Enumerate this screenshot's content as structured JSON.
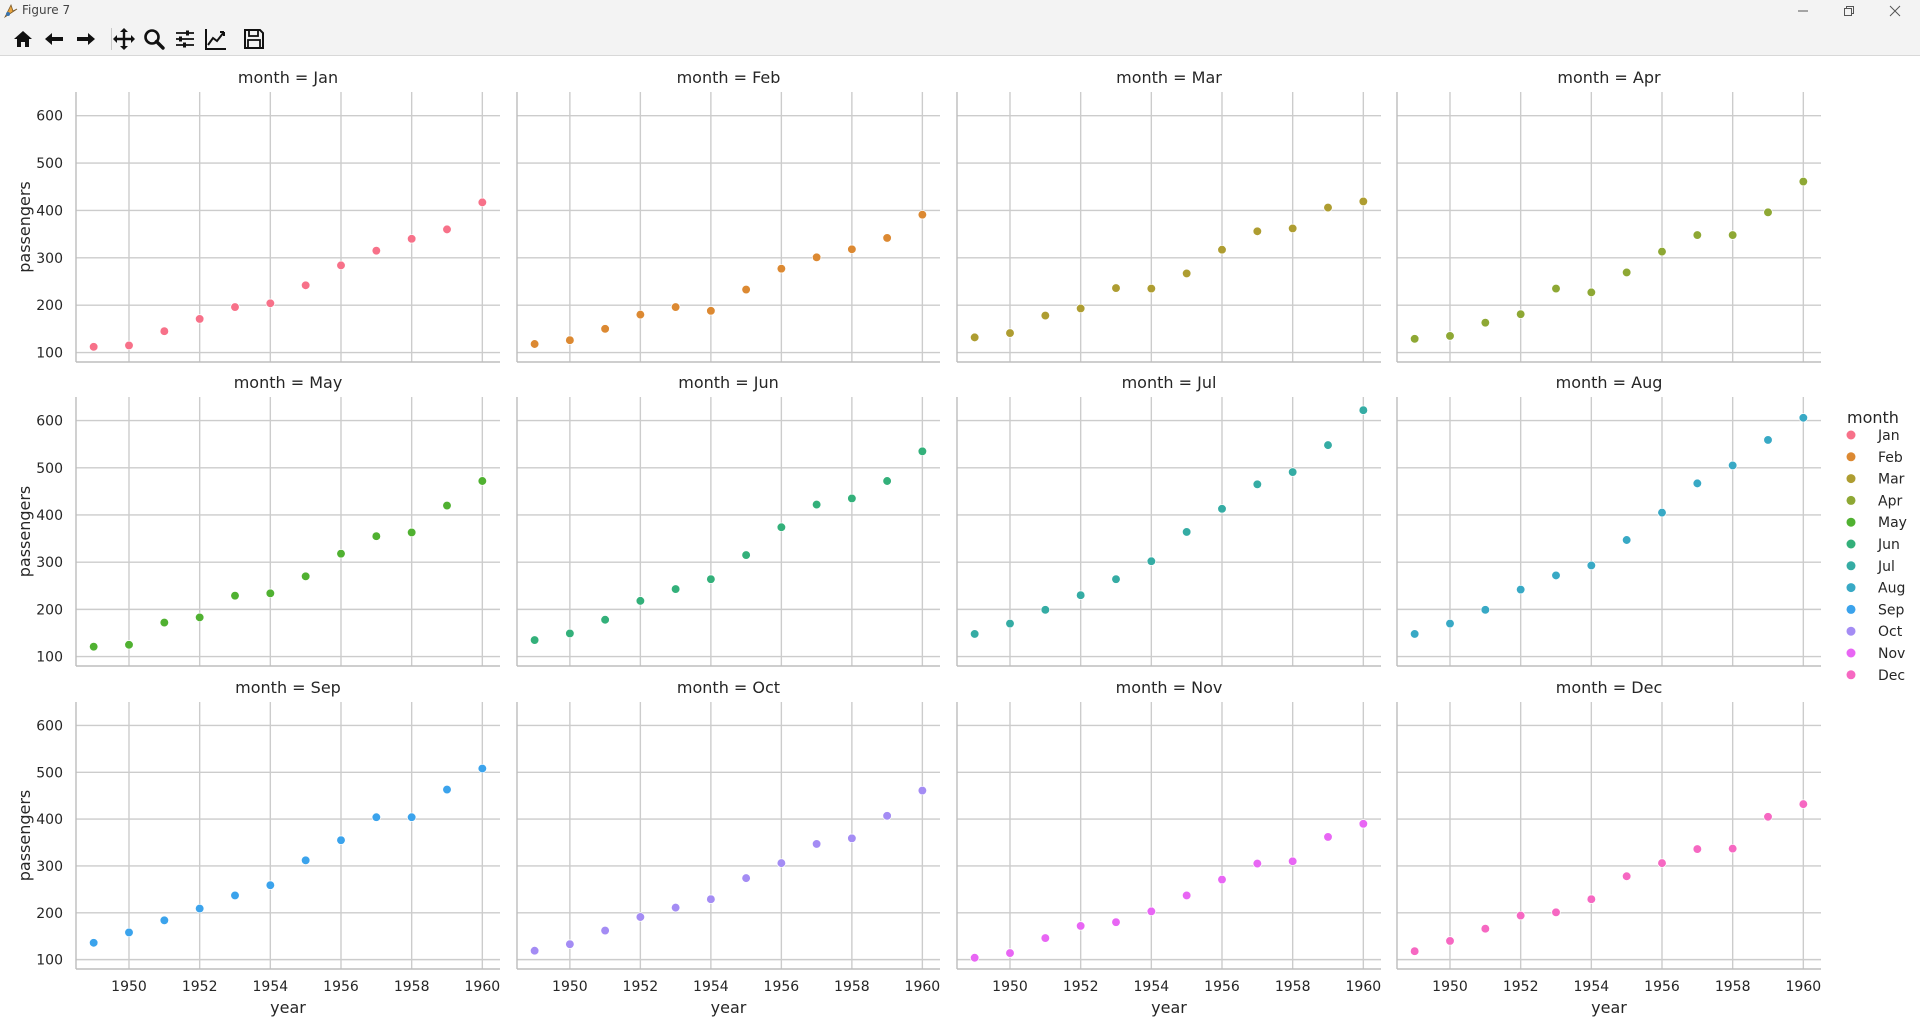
{
  "window": {
    "title": "Figure 7"
  },
  "toolbar": {
    "items": [
      {
        "name": "home-icon"
      },
      {
        "name": "back-arrow-icon"
      },
      {
        "name": "forward-arrow-icon"
      },
      {
        "name": "pan-icon"
      },
      {
        "name": "zoom-icon"
      },
      {
        "name": "configure-subplots-icon"
      },
      {
        "name": "edit-axis-icon"
      },
      {
        "name": "save-icon"
      }
    ]
  },
  "chart_data": {
    "type": "scatter",
    "facet_title_prefix": "month = ",
    "xlabel": "year",
    "ylabel": "passengers",
    "x": [
      1949,
      1950,
      1951,
      1952,
      1953,
      1954,
      1955,
      1956,
      1957,
      1958,
      1959,
      1960
    ],
    "xticks": [
      1950,
      1952,
      1954,
      1956,
      1958,
      1960
    ],
    "yticks": [
      100,
      200,
      300,
      400,
      500,
      600
    ],
    "ylim": [
      80,
      650
    ],
    "grid": true,
    "legend": {
      "title": "month",
      "placement": "right"
    },
    "series": [
      {
        "name": "Jan",
        "color": "#f77189",
        "values": [
          112,
          115,
          145,
          171,
          196,
          204,
          242,
          284,
          315,
          340,
          360,
          417
        ]
      },
      {
        "name": "Feb",
        "color": "#dc8932",
        "values": [
          118,
          126,
          150,
          180,
          196,
          188,
          233,
          277,
          301,
          318,
          342,
          391
        ]
      },
      {
        "name": "Mar",
        "color": "#ae9d31",
        "values": [
          132,
          141,
          178,
          193,
          236,
          235,
          267,
          317,
          356,
          362,
          406,
          419
        ]
      },
      {
        "name": "Apr",
        "color": "#8ea834",
        "values": [
          129,
          135,
          163,
          181,
          235,
          227,
          269,
          313,
          348,
          348,
          396,
          461
        ]
      },
      {
        "name": "May",
        "color": "#50b131",
        "values": [
          121,
          125,
          172,
          183,
          229,
          234,
          270,
          318,
          355,
          363,
          420,
          472
        ]
      },
      {
        "name": "Jun",
        "color": "#33b07a",
        "values": [
          135,
          149,
          178,
          218,
          243,
          264,
          315,
          374,
          422,
          435,
          472,
          535
        ]
      },
      {
        "name": "Jul",
        "color": "#35aca4",
        "values": [
          148,
          170,
          199,
          230,
          264,
          302,
          364,
          413,
          465,
          491,
          548,
          622
        ]
      },
      {
        "name": "Aug",
        "color": "#38a9c5",
        "values": [
          148,
          170,
          199,
          242,
          272,
          293,
          347,
          405,
          467,
          505,
          559,
          606
        ]
      },
      {
        "name": "Sep",
        "color": "#3ba3ec",
        "values": [
          136,
          158,
          184,
          209,
          237,
          259,
          312,
          355,
          404,
          404,
          463,
          508
        ]
      },
      {
        "name": "Oct",
        "color": "#a48cf4",
        "values": [
          119,
          133,
          162,
          191,
          211,
          229,
          274,
          306,
          347,
          359,
          407,
          461
        ]
      },
      {
        "name": "Nov",
        "color": "#e866f4",
        "values": [
          104,
          114,
          146,
          172,
          180,
          203,
          237,
          271,
          305,
          310,
          362,
          390
        ]
      },
      {
        "name": "Dec",
        "color": "#f668c2",
        "values": [
          118,
          140,
          166,
          194,
          201,
          229,
          278,
          306,
          336,
          337,
          405,
          432
        ]
      }
    ]
  }
}
